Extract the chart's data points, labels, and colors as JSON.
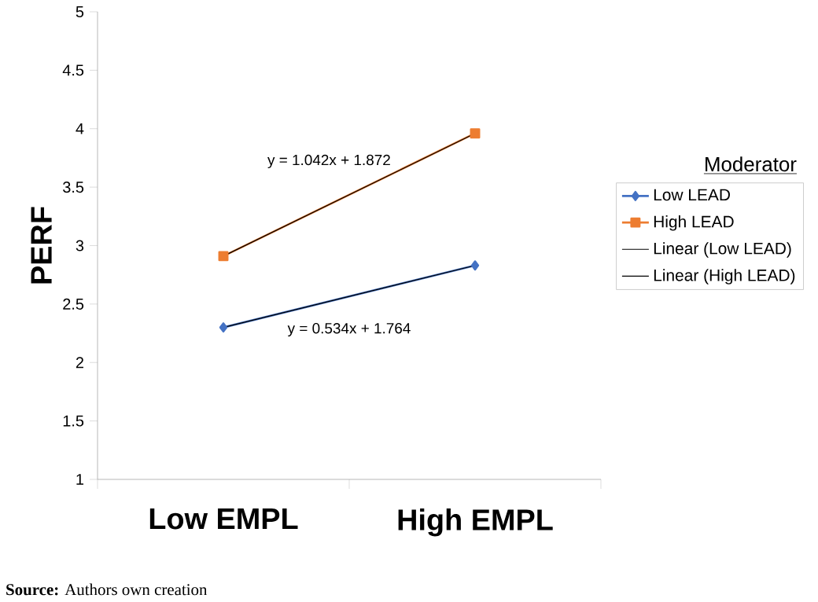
{
  "chart_data": {
    "type": "line",
    "ylabel": "PERF",
    "legend_title": "Moderator",
    "legend": "right",
    "grid": false,
    "categories": [
      "Low EMPL",
      "High EMPL"
    ],
    "ylim": [
      1,
      5
    ],
    "yticks": [
      1,
      1.5,
      2,
      2.5,
      3,
      3.5,
      4,
      4.5,
      5
    ],
    "series": [
      {
        "name": "Low LEAD",
        "color": "#4472c4",
        "marker": "diamond",
        "values": [
          2.3,
          2.83
        ]
      },
      {
        "name": "High LEAD",
        "color": "#ed7d31",
        "marker": "square",
        "values": [
          2.91,
          3.96
        ]
      },
      {
        "name": "Linear (Low LEAD)",
        "color": "#000000",
        "marker": "none",
        "values": [
          2.3,
          2.83
        ]
      },
      {
        "name": "Linear (High LEAD)",
        "color": "#000000",
        "marker": "none",
        "values": [
          2.91,
          3.96
        ]
      }
    ],
    "annotations": [
      "y = 1.042x + 1.872",
      "y = 0.534x + 1.764",
      "**Source:** Authors own creation"
    ]
  }
}
